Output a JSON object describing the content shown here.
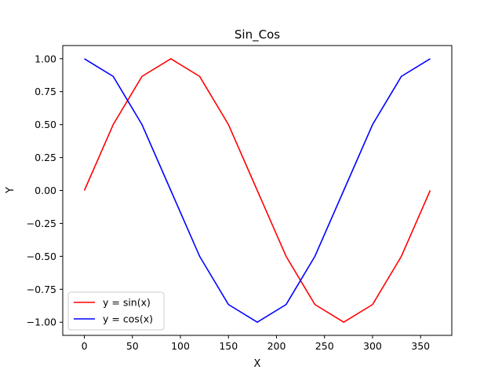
{
  "chart_data": {
    "type": "line",
    "title": "Sin_Cos",
    "xlabel": "X",
    "ylabel": "Y",
    "xlim": [
      -22.5,
      382.5
    ],
    "ylim": [
      -1.1,
      1.1
    ],
    "x_ticks": [
      0,
      50,
      100,
      150,
      200,
      250,
      300,
      350
    ],
    "x_tick_labels": [
      "0",
      "50",
      "100",
      "150",
      "200",
      "250",
      "300",
      "350"
    ],
    "y_ticks": [
      -1.0,
      -0.75,
      -0.5,
      -0.25,
      0.0,
      0.25,
      0.5,
      0.75,
      1.0
    ],
    "y_tick_labels": [
      "−1.00",
      "−0.75",
      "−0.50",
      "−0.25",
      "0.00",
      "0.25",
      "0.50",
      "0.75",
      "1.00"
    ],
    "grid": false,
    "legend_position": "lower-left",
    "x": [
      0,
      30,
      60,
      90,
      120,
      150,
      180,
      210,
      240,
      270,
      300,
      330,
      360
    ],
    "series": [
      {
        "name": "y = sin(x)",
        "color": "#ff0000",
        "values": [
          0.0,
          0.5,
          0.866,
          1.0,
          0.866,
          0.5,
          0.0,
          -0.5,
          -0.866,
          -1.0,
          -0.866,
          -0.5,
          0.0
        ]
      },
      {
        "name": "y = cos(x)",
        "color": "#0000ff",
        "values": [
          1.0,
          0.866,
          0.5,
          0.0,
          -0.5,
          -0.866,
          -1.0,
          -0.866,
          -0.5,
          0.0,
          0.5,
          0.866,
          1.0
        ]
      }
    ]
  }
}
